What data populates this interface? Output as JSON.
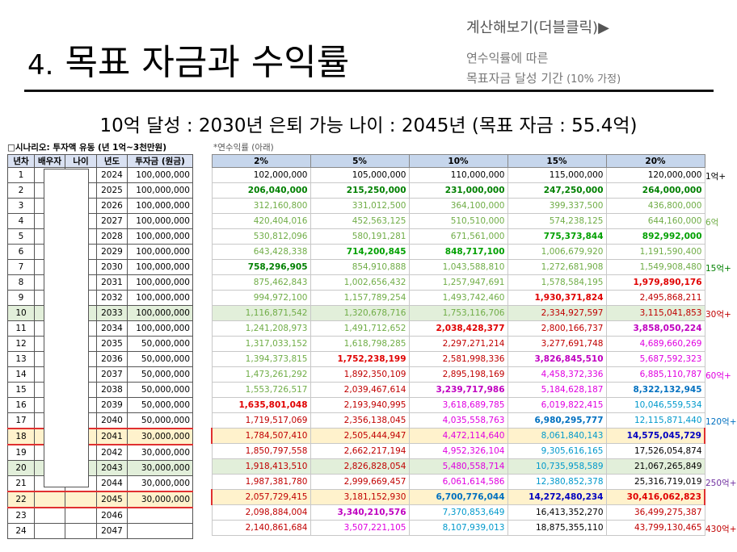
{
  "header": {
    "title_num": "4.",
    "title_text": "목표 자금과 수익률",
    "calc_link": "계산해보기(더블클릭)▶",
    "note_line1": "연수익률에 따른",
    "note_line2_a": "목표자금 달성 기간",
    "note_line2_b": " (10% 가정)"
  },
  "headline": "10억 달성 : 2030년 은퇴 가능 나이 : 2045년 (목표 자금 : 55.4억)",
  "scenario_label": "□시나리오: 투자액 유동 (년 1억~3천만원)",
  "yield_label": "*연수익률 (아래)",
  "left_headers": [
    "년차",
    "배우자",
    "나이",
    "년도",
    "투자금 (원금)"
  ],
  "rate_headers": [
    "2%",
    "5%",
    "10%",
    "15%",
    "20%"
  ],
  "rows": [
    {
      "n": "1",
      "year": "2024",
      "inv": "100,000,000",
      "v": [
        "102,000,000",
        "105,000,000",
        "110,000,000",
        "115,000,000",
        "120,000,000"
      ]
    },
    {
      "n": "2",
      "year": "2025",
      "inv": "100,000,000",
      "v": [
        "206,040,000",
        "215,250,000",
        "231,000,000",
        "247,250,000",
        "264,000,000"
      ]
    },
    {
      "n": "3",
      "year": "2026",
      "inv": "100,000,000",
      "v": [
        "312,160,800",
        "331,012,500",
        "364,100,000",
        "399,337,500",
        "436,800,000"
      ]
    },
    {
      "n": "4",
      "year": "2027",
      "inv": "100,000,000",
      "v": [
        "420,404,016",
        "452,563,125",
        "510,510,000",
        "574,238,125",
        "644,160,000"
      ]
    },
    {
      "n": "5",
      "year": "2028",
      "inv": "100,000,000",
      "v": [
        "530,812,096",
        "580,191,281",
        "671,561,000",
        "775,373,844",
        "892,992,000"
      ]
    },
    {
      "n": "6",
      "year": "2029",
      "inv": "100,000,000",
      "v": [
        "643,428,338",
        "714,200,845",
        "848,717,100",
        "1,006,679,920",
        "1,191,590,400"
      ]
    },
    {
      "n": "7",
      "year": "2030",
      "inv": "100,000,000",
      "v": [
        "758,296,905",
        "854,910,888",
        "1,043,588,810",
        "1,272,681,908",
        "1,549,908,480"
      ]
    },
    {
      "n": "8",
      "year": "2031",
      "inv": "100,000,000",
      "v": [
        "875,462,843",
        "1,002,656,432",
        "1,257,947,691",
        "1,578,584,195",
        "1,979,890,176"
      ]
    },
    {
      "n": "9",
      "year": "2032",
      "inv": "100,000,000",
      "v": [
        "994,972,100",
        "1,157,789,254",
        "1,493,742,460",
        "1,930,371,824",
        "2,495,868,211"
      ]
    },
    {
      "n": "10",
      "year": "2033",
      "inv": "100,000,000",
      "v": [
        "1,116,871,542",
        "1,320,678,716",
        "1,753,116,706",
        "2,334,927,597",
        "3,115,041,853"
      ]
    },
    {
      "n": "11",
      "year": "2034",
      "inv": "100,000,000",
      "v": [
        "1,241,208,973",
        "1,491,712,652",
        "2,038,428,377",
        "2,800,166,737",
        "3,858,050,224"
      ]
    },
    {
      "n": "12",
      "year": "2035",
      "inv": "50,000,000",
      "v": [
        "1,317,033,152",
        "1,618,798,285",
        "2,297,271,214",
        "3,277,691,748",
        "4,689,660,269"
      ]
    },
    {
      "n": "13",
      "year": "2036",
      "inv": "50,000,000",
      "v": [
        "1,394,373,815",
        "1,752,238,199",
        "2,581,998,336",
        "3,826,845,510",
        "5,687,592,323"
      ]
    },
    {
      "n": "14",
      "year": "2037",
      "inv": "50,000,000",
      "v": [
        "1,473,261,292",
        "1,892,350,109",
        "2,895,198,169",
        "4,458,372,336",
        "6,885,110,787"
      ]
    },
    {
      "n": "15",
      "year": "2038",
      "inv": "50,000,000",
      "v": [
        "1,553,726,517",
        "2,039,467,614",
        "3,239,717,986",
        "5,184,628,187",
        "8,322,132,945"
      ]
    },
    {
      "n": "16",
      "year": "2039",
      "inv": "50,000,000",
      "v": [
        "1,635,801,048",
        "2,193,940,995",
        "3,618,689,785",
        "6,019,822,415",
        "10,046,559,534"
      ]
    },
    {
      "n": "17",
      "year": "2040",
      "inv": "50,000,000",
      "v": [
        "1,719,517,069",
        "2,356,138,045",
        "4,035,558,763",
        "6,980,295,777",
        "12,115,871,440"
      ]
    },
    {
      "n": "18",
      "year": "2041",
      "inv": "30,000,000",
      "v": [
        "1,784,507,410",
        "2,505,444,947",
        "4,472,114,640",
        "8,061,840,143",
        "14,575,045,729"
      ]
    },
    {
      "n": "19",
      "year": "2042",
      "inv": "30,000,000",
      "v": [
        "1,850,797,558",
        "2,662,217,194",
        "4,952,326,104",
        "9,305,616,165",
        "17,526,054,874"
      ]
    },
    {
      "n": "20",
      "year": "2043",
      "inv": "30,000,000",
      "v": [
        "1,918,413,510",
        "2,826,828,054",
        "5,480,558,714",
        "10,735,958,589",
        "21,067,265,849"
      ]
    },
    {
      "n": "21",
      "year": "2044",
      "inv": "30,000,000",
      "v": [
        "1,987,381,780",
        "2,999,669,457",
        "6,061,614,586",
        "12,380,852,378",
        "25,316,719,019"
      ]
    },
    {
      "n": "22",
      "year": "2045",
      "inv": "30,000,000",
      "v": [
        "2,057,729,415",
        "3,181,152,930",
        "6,700,776,044",
        "14,272,480,234",
        "30,416,062,823"
      ]
    },
    {
      "n": "23",
      "year": "2046",
      "inv": "",
      "v": [
        "2,098,884,004",
        "3,340,210,576",
        "7,370,853,649",
        "16,413,352,270",
        "36,499,275,387"
      ]
    },
    {
      "n": "24",
      "year": "2047",
      "inv": "",
      "v": [
        "2,140,861,684",
        "3,507,221,105",
        "8,107,939,013",
        "18,875,355,110",
        "43,799,130,465"
      ]
    }
  ],
  "tags": [
    {
      "row": 0,
      "text": "1억+",
      "color": "#000000"
    },
    {
      "row": 3,
      "text": "6억",
      "color": "#70ad47"
    },
    {
      "row": 6,
      "text": "15억+",
      "color": "#008000"
    },
    {
      "row": 9,
      "text": "30억+",
      "color": "#c00000"
    },
    {
      "row": 13,
      "text": "60억+",
      "color": "#e000e0"
    },
    {
      "row": 16,
      "text": "120억+",
      "color": "#0070c0"
    },
    {
      "row": 20,
      "text": "250억+",
      "color": "#7030a0"
    },
    {
      "row": 23,
      "text": "430억+",
      "color": "#c00000"
    }
  ]
}
